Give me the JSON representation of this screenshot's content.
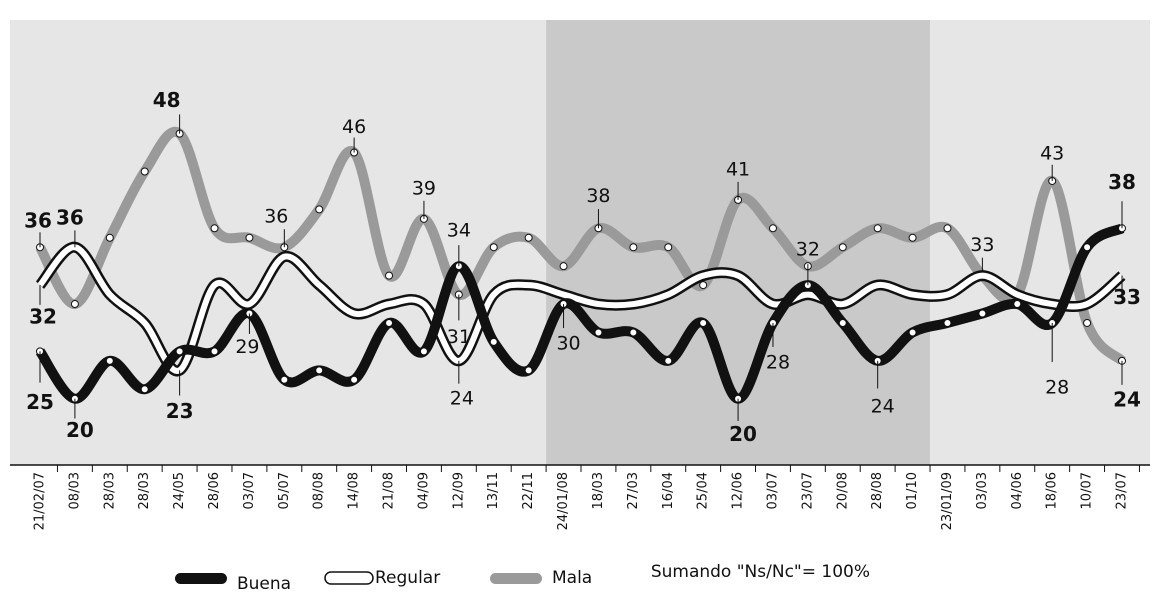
{
  "chart_data": {
    "type": "line",
    "categories": [
      "21/02/07",
      "08/03",
      "28/03",
      "28/03",
      "24/05",
      "28/06",
      "03/07",
      "05/07",
      "08/08",
      "14/08",
      "21/08",
      "04/09",
      "12/09",
      "13/11",
      "22/11",
      "24/01/08",
      "18/03",
      "27/03",
      "16/04",
      "25/04",
      "12/06",
      "03/07",
      "23/07",
      "20/08",
      "28/08",
      "01/10",
      "23/01/09",
      "03/03",
      "04/06",
      "18/06",
      "10/07",
      "23/07"
    ],
    "series": [
      {
        "name": "Buena",
        "color": "#111111",
        "values": [
          25,
          20,
          24,
          21,
          25,
          25,
          29,
          22,
          23,
          22,
          28,
          25,
          34,
          26,
          23,
          30,
          27,
          27,
          24,
          28,
          20,
          28,
          32,
          28,
          24,
          27,
          28,
          29,
          30,
          28,
          36,
          38
        ]
      },
      {
        "name": "Regular",
        "color": "#ffffff",
        "values": [
          32,
          36,
          31,
          28,
          23,
          32,
          30,
          35,
          32,
          29,
          30,
          30,
          24,
          31,
          32,
          31,
          30,
          30,
          31,
          33,
          33,
          30,
          31,
          30,
          32,
          31,
          31,
          33,
          31,
          30,
          30,
          33
        ]
      },
      {
        "name": "Mala",
        "color": "#9a9a9a",
        "values": [
          36,
          30,
          37,
          44,
          48,
          38,
          37,
          36,
          40,
          46,
          33,
          39,
          31,
          36,
          37,
          34,
          38,
          36,
          36,
          32,
          41,
          38,
          34,
          36,
          38,
          37,
          38,
          33,
          31,
          43,
          28,
          24
        ]
      }
    ],
    "ylim": [
      13,
      60
    ],
    "note": "Sumando \"Ns/Nc\"= 100%"
  }
}
